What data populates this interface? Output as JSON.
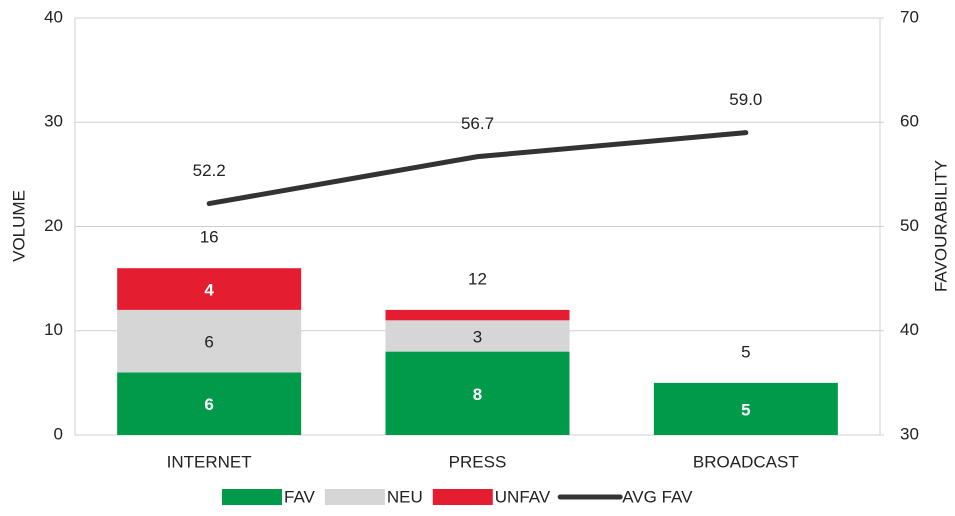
{
  "chart_data": {
    "type": "stacked_bar_line",
    "categories": [
      "INTERNET",
      "PRESS",
      "BROADCAST"
    ],
    "series": [
      {
        "name": "FAV",
        "color": "#009a4a",
        "values": [
          6,
          8,
          5
        ],
        "value_labels": [
          "6",
          "8",
          "5"
        ],
        "label_color": "#ffffff"
      },
      {
        "name": "NEU",
        "color": "#d6d6d6",
        "values": [
          6,
          3,
          0
        ],
        "value_labels": [
          "6",
          "3",
          null
        ],
        "label_color": "#222222"
      },
      {
        "name": "UNFAV",
        "color": "#e41e30",
        "values": [
          4,
          1,
          0
        ],
        "value_labels": [
          "4",
          null,
          null
        ],
        "label_color": "#ffffff"
      },
      {
        "name": "AVG FAV",
        "color": "#333333",
        "type": "line",
        "axis": "y2",
        "values": [
          52.2,
          56.7,
          59.0
        ],
        "value_labels": [
          "52.2",
          "56.7",
          "59.0"
        ]
      }
    ],
    "totals": [
      16,
      12,
      5
    ],
    "ylabel": "VOLUME",
    "y2label": "FAVOURABILITY",
    "ylim": [
      0,
      40
    ],
    "yticks": [
      0,
      10,
      20,
      30,
      40
    ],
    "y2lim": [
      30,
      70
    ],
    "y2ticks": [
      30,
      40,
      50,
      60,
      70
    ],
    "grid": true,
    "legend": "bottom"
  }
}
